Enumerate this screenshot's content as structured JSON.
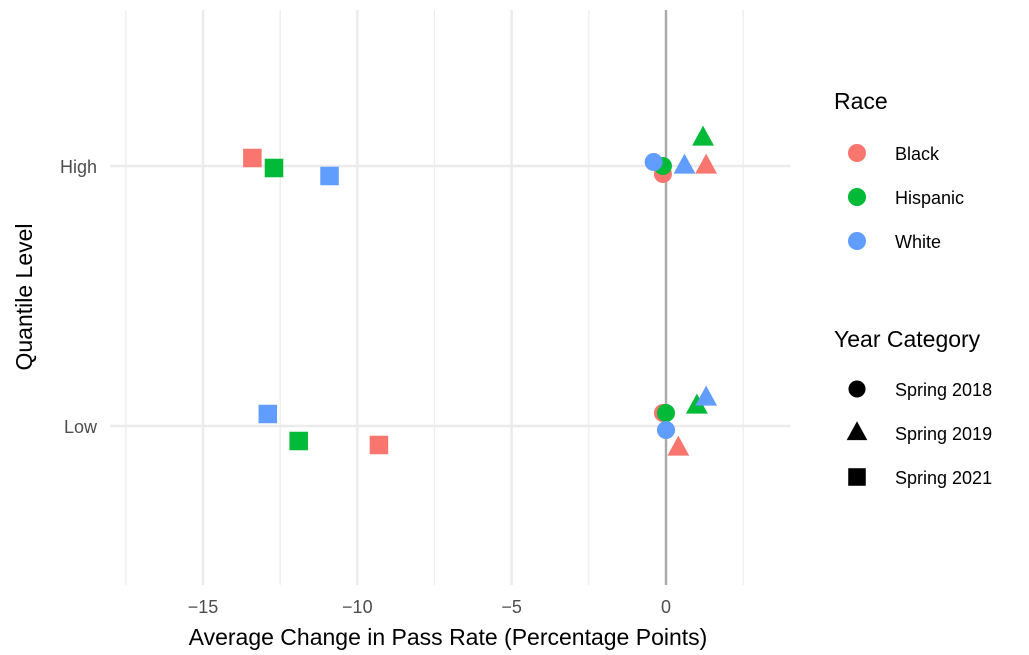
{
  "chart_data": {
    "type": "scatter",
    "xlabel": "Average Change in Pass Rate (Percentage Points)",
    "ylabel": "Quantile Level",
    "xlim": [
      -17.5,
      3.5
    ],
    "x_ticks": [
      -15,
      -10,
      -5,
      0
    ],
    "x_tick_labels": [
      "−15",
      "−10",
      "−5",
      "0"
    ],
    "categories": [
      "Low",
      "High"
    ],
    "grid": true,
    "reference_line_x": 0,
    "colors": {
      "Black": "#F8766D",
      "Hispanic": "#00BA38",
      "White": "#619CFF",
      "reference": "#aaaaaa",
      "grid": "#ebebeb"
    },
    "legend": {
      "placement": "right",
      "race_title": "Race",
      "race_items": [
        "Black",
        "Hispanic",
        "White"
      ],
      "year_title": "Year Category",
      "year_items": [
        "Spring 2018",
        "Spring 2019",
        "Spring 2021"
      ],
      "year_shapes": [
        "circle",
        "triangle",
        "square"
      ]
    },
    "points": [
      {
        "race": "Black",
        "year": "Spring 2018",
        "quantile": "High",
        "x": -0.1
      },
      {
        "race": "Hispanic",
        "year": "Spring 2018",
        "quantile": "High",
        "x": -0.1
      },
      {
        "race": "White",
        "year": "Spring 2018",
        "quantile": "High",
        "x": -0.4
      },
      {
        "race": "Black",
        "year": "Spring 2019",
        "quantile": "High",
        "x": 1.3
      },
      {
        "race": "Hispanic",
        "year": "Spring 2019",
        "quantile": "High",
        "x": 1.2
      },
      {
        "race": "White",
        "year": "Spring 2019",
        "quantile": "High",
        "x": 0.6
      },
      {
        "race": "Black",
        "year": "Spring 2021",
        "quantile": "High",
        "x": -13.4
      },
      {
        "race": "Hispanic",
        "year": "Spring 2021",
        "quantile": "High",
        "x": -12.7
      },
      {
        "race": "White",
        "year": "Spring 2021",
        "quantile": "High",
        "x": -10.9
      },
      {
        "race": "Black",
        "year": "Spring 2018",
        "quantile": "Low",
        "x": -0.1
      },
      {
        "race": "Hispanic",
        "year": "Spring 2018",
        "quantile": "Low",
        "x": 0.0
      },
      {
        "race": "White",
        "year": "Spring 2018",
        "quantile": "Low",
        "x": 0.0
      },
      {
        "race": "Black",
        "year": "Spring 2019",
        "quantile": "Low",
        "x": 0.4
      },
      {
        "race": "Hispanic",
        "year": "Spring 2019",
        "quantile": "Low",
        "x": 1.0
      },
      {
        "race": "White",
        "year": "Spring 2019",
        "quantile": "Low",
        "x": 1.3
      },
      {
        "race": "Black",
        "year": "Spring 2021",
        "quantile": "Low",
        "x": -9.3
      },
      {
        "race": "Hispanic",
        "year": "Spring 2021",
        "quantile": "Low",
        "x": -11.9
      },
      {
        "race": "White",
        "year": "Spring 2021",
        "quantile": "Low",
        "x": -12.9
      }
    ]
  }
}
